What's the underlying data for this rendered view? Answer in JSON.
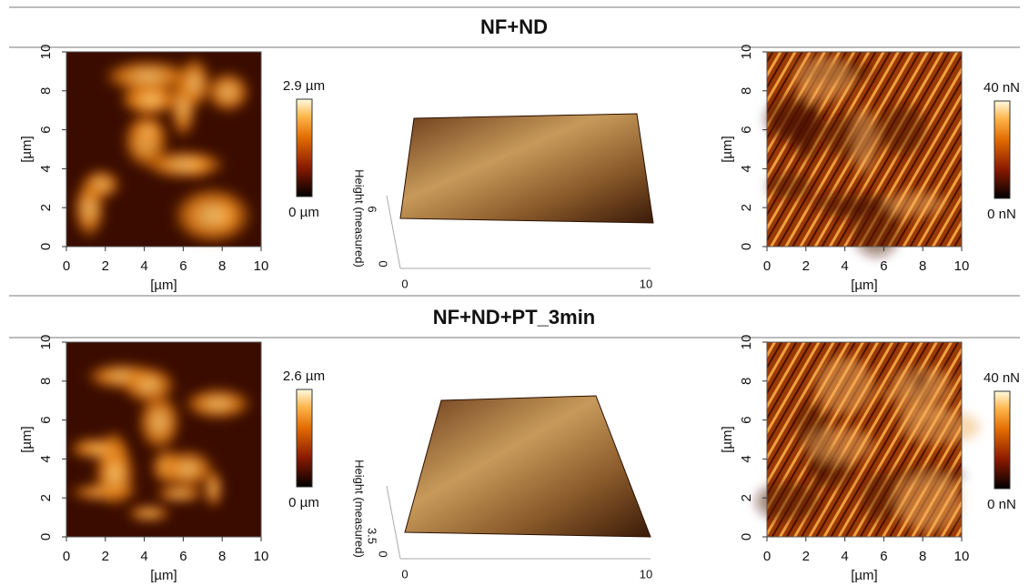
{
  "rows": [
    {
      "title": "NF+ND",
      "height_map": {
        "x_ticks": [
          "0",
          "2",
          "4",
          "6",
          "8",
          "10"
        ],
        "y_ticks": [
          "0",
          "2",
          "4",
          "6",
          "8",
          "10"
        ],
        "x_label": "[µm]",
        "y_label": "[µm]",
        "colorbar": {
          "max": "2.9 µm",
          "min": "0 µm"
        }
      },
      "surface_3d": {
        "z_label": "Height (measured)",
        "z_ticks": [
          "0",
          "6"
        ],
        "x_ticks": [
          "0",
          "10"
        ]
      },
      "force_map": {
        "x_ticks": [
          "0",
          "2",
          "4",
          "6",
          "8",
          "10"
        ],
        "y_ticks": [
          "0",
          "2",
          "4",
          "6",
          "8",
          "10"
        ],
        "x_label": "[µm]",
        "y_label": "[µm]",
        "colorbar": {
          "max": "40 nN",
          "min": "0 nN"
        }
      }
    },
    {
      "title": "NF+ND+PT_3min",
      "height_map": {
        "x_ticks": [
          "0",
          "2",
          "4",
          "6",
          "8",
          "10"
        ],
        "y_ticks": [
          "0",
          "2",
          "4",
          "6",
          "8",
          "10"
        ],
        "x_label": "[µm]",
        "y_label": "[µm]",
        "colorbar": {
          "max": "2.6 µm",
          "min": "0 µm"
        }
      },
      "surface_3d": {
        "z_label": "Height (measured)",
        "z_ticks": [
          "0",
          "3.5"
        ],
        "x_ticks": [
          "0",
          "10"
        ]
      },
      "force_map": {
        "x_ticks": [
          "0",
          "2",
          "4",
          "6",
          "8",
          "10"
        ],
        "y_ticks": [
          "0",
          "2",
          "4",
          "6",
          "8",
          "10"
        ],
        "x_label": "[µm]",
        "y_label": "[µm]",
        "colorbar": {
          "max": "40 nN",
          "min": "0 nN"
        }
      }
    }
  ]
}
